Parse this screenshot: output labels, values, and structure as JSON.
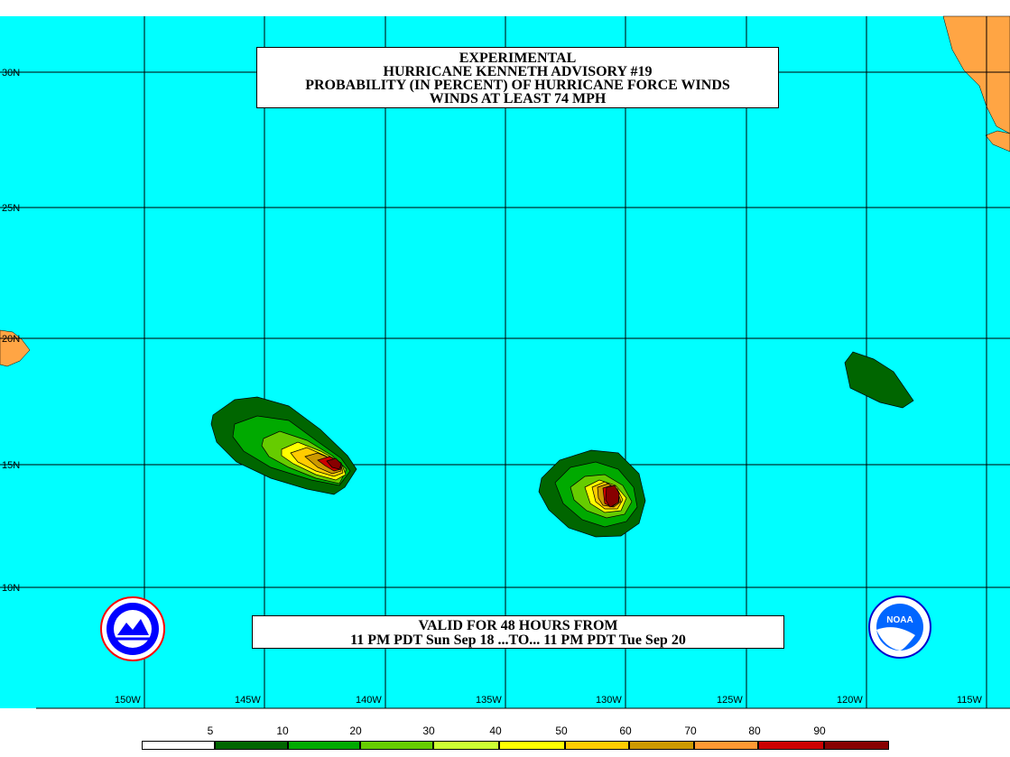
{
  "title": {
    "lines": [
      "EXPERIMENTAL",
      "HURRICANE KENNETH ADVISORY #19",
      "PROBABILITY (IN PERCENT) OF HURRICANE FORCE WINDS",
      "WINDS AT LEAST 74 MPH"
    ]
  },
  "valid": {
    "line1": "VALID FOR 48 HOURS FROM",
    "line2": "11 PM PDT Sun Sep 18 ...TO... 11 PM PDT Tue Sep 20"
  },
  "lat_labels": [
    "30N",
    "25N",
    "20N",
    "15N",
    "10N"
  ],
  "lon_labels": [
    "150W",
    "145W",
    "140W",
    "135W",
    "130W",
    "125W",
    "120W",
    "115W"
  ],
  "legend": {
    "labels": [
      "5",
      "10",
      "20",
      "30",
      "40",
      "50",
      "60",
      "70",
      "80",
      "90"
    ],
    "colors": [
      "#ffffff",
      "#006600",
      "#00aa00",
      "#66cc00",
      "#ccff33",
      "#ffff00",
      "#ffcc00",
      "#cc9900",
      "#ff9933",
      "#cc0000",
      "#880000",
      "#990099"
    ]
  },
  "map_colors": {
    "ocean": "#00ffff",
    "land": "#ffa544",
    "grid": "#000000"
  },
  "logos": {
    "left": "nws-logo-icon",
    "right": "noaa-logo-icon",
    "right_text": "NOAA"
  }
}
